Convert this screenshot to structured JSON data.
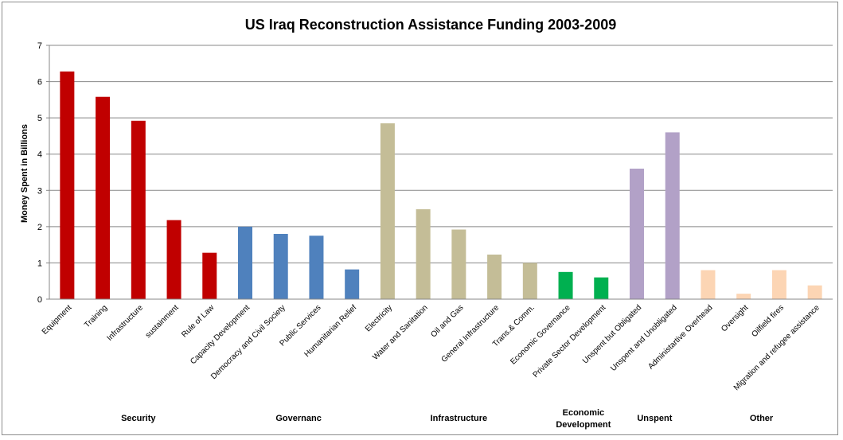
{
  "chart_data": {
    "type": "bar",
    "title": "US Iraq Reconstruction Assistance Funding 2003-2009",
    "xlabel": "",
    "ylabel": "Money Spent in Billions",
    "ylim": [
      0,
      7
    ],
    "yticks": [
      "0",
      "1",
      "2",
      "3",
      "4",
      "5",
      "6",
      "7"
    ],
    "grid": true,
    "legend": "none",
    "categories": [
      "Equipment",
      "Training",
      "Infrastructure",
      "sustainment",
      "Rule of Law",
      "Capacity Development",
      "Democracy and Civil Society",
      "Public Services",
      "Humanitarian Relief",
      "Electricity",
      "Water and Sanitation",
      "Oil and Gas",
      "General Infrastructure",
      "Trans.& Comm.",
      "Economic Governance",
      "Private Sector Development",
      "Unspent but Obligated",
      "Unspent and Unobligated",
      "Administartive Overhead",
      "Oversight",
      "Oilfield fires",
      "Migration and refugee assistance"
    ],
    "values": [
      6.28,
      5.58,
      4.92,
      2.18,
      1.28,
      2.0,
      1.8,
      1.75,
      0.82,
      4.85,
      2.48,
      1.92,
      1.23,
      1.0,
      0.75,
      0.6,
      3.6,
      4.6,
      0.8,
      0.15,
      0.8,
      0.38
    ],
    "groups": [
      {
        "label": "Security",
        "color": "#c00000",
        "count": 5
      },
      {
        "label": "Governanc",
        "color": "#4f81bd",
        "count": 4
      },
      {
        "label": "Infrastructure",
        "color": "#c4bd97",
        "count": 5
      },
      {
        "label": "Economic Development",
        "color": "#00b050",
        "count": 2
      },
      {
        "label": "Unspent",
        "color": "#b2a1c7",
        "count": 2
      },
      {
        "label": "Other",
        "color": "#fcd5b4",
        "count": 4
      }
    ]
  }
}
